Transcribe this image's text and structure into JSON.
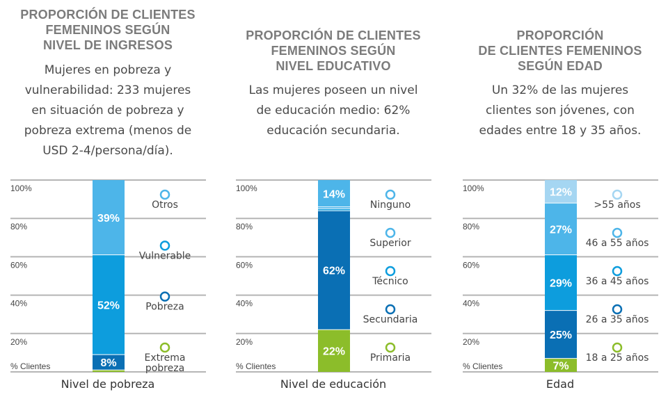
{
  "panels": [
    {
      "title": [
        "PROPORCIÓN DE CLIENTES",
        "FEMENINOS SEGÚN",
        "NIVEL DE INGRESOS"
      ],
      "description": [
        "Mujeres en pobreza y",
        "vulnerabilidad: 233 mujeres",
        "en situación de pobreza y",
        "pobreza extrema (menos de",
        "USD 2-4/persona/día)."
      ]
    },
    {
      "title": [
        "PROPORCIÓN DE CLIENTES",
        "FEMENINOS SEGÚN",
        "NIVEL EDUCATIVO"
      ],
      "description": [
        "Las mujeres poseen un nivel",
        "de educación medio: 62%",
        "educación secundaria."
      ]
    },
    {
      "title": [
        "PROPORCIÓN",
        "DE CLIENTES FEMENINOS",
        "SEGÚN EDAD"
      ],
      "description": [
        "Un 32% de las mujeres",
        "clientes son jóvenes, con",
        "edades entre 18 y 35 años."
      ]
    }
  ],
  "chart_data": [
    {
      "type": "bar",
      "stacked": true,
      "xlabel": "Nivel de pobreza",
      "ylabel": "% Clientes",
      "ylim": [
        0,
        100
      ],
      "yticks": [
        "20%",
        "40%",
        "60%",
        "80%",
        "100%"
      ],
      "grid": true,
      "segments": [
        {
          "name": "Extrema pobreza",
          "legend": [
            "Extrema",
            "pobreza"
          ],
          "value": 1,
          "label": "",
          "color": "#8cbd2a"
        },
        {
          "name": "Pobreza",
          "legend": [
            "Pobreza"
          ],
          "value": 8,
          "label": "8%",
          "color": "#0a6fb4"
        },
        {
          "name": "Vulnerable",
          "legend": [
            "Vulnerable"
          ],
          "value": 52,
          "label": "52%",
          "color": "#0d9ddd"
        },
        {
          "name": "Otros",
          "legend": [
            "Otros"
          ],
          "value": 39,
          "label": "39%",
          "color": "#4db5e9"
        }
      ]
    },
    {
      "type": "bar",
      "stacked": true,
      "xlabel": "Nivel de educación",
      "ylabel": "% Clientes",
      "ylim": [
        0,
        100
      ],
      "yticks": [
        "20%",
        "40%",
        "60%",
        "80%",
        "100%"
      ],
      "grid": true,
      "segments": [
        {
          "name": "Primaria",
          "legend": [
            "Primaria"
          ],
          "value": 22,
          "label": "22%",
          "color": "#8cbd2a"
        },
        {
          "name": "Secundaria",
          "legend": [
            "Secundaria"
          ],
          "value": 62,
          "label": "62%",
          "color": "#0a6fb4"
        },
        {
          "name": "Técnico",
          "legend": [
            "Técnico"
          ],
          "value": 1,
          "label": "",
          "color": "#0d9ddd"
        },
        {
          "name": "Superior",
          "legend": [
            "Superior"
          ],
          "value": 1,
          "label": "",
          "color": "#4db5e9"
        },
        {
          "name": "Ninguno",
          "legend": [
            "Ninguno"
          ],
          "value": 14,
          "label": "14%",
          "color": "#4db5e9"
        }
      ]
    },
    {
      "type": "bar",
      "stacked": true,
      "xlabel": "Edad",
      "ylabel": "% Clientes",
      "ylim": [
        0,
        100
      ],
      "yticks": [
        "20%",
        "40%",
        "60%",
        "80%",
        "100%"
      ],
      "grid": true,
      "segments": [
        {
          "name": "18 a 25 años",
          "legend": [
            "18 a 25 años"
          ],
          "value": 7,
          "label": "7%",
          "color": "#8cbd2a"
        },
        {
          "name": "26 a 35 años",
          "legend": [
            "26 a 35 años"
          ],
          "value": 25,
          "label": "25%",
          "color": "#0a6fb4"
        },
        {
          "name": "36 a 45 años",
          "legend": [
            "36 a 45 años"
          ],
          "value": 29,
          "label": "29%",
          "color": "#0d9ddd"
        },
        {
          "name": "46 a 55 años",
          "legend": [
            "46 a 55 años"
          ],
          "value": 27,
          "label": "27%",
          "color": "#4db5e9"
        },
        {
          "name": ">55 años",
          "legend": [
            ">55 años"
          ],
          "value": 12,
          "label": "12%",
          "color": "#a5d6f2"
        }
      ]
    }
  ]
}
